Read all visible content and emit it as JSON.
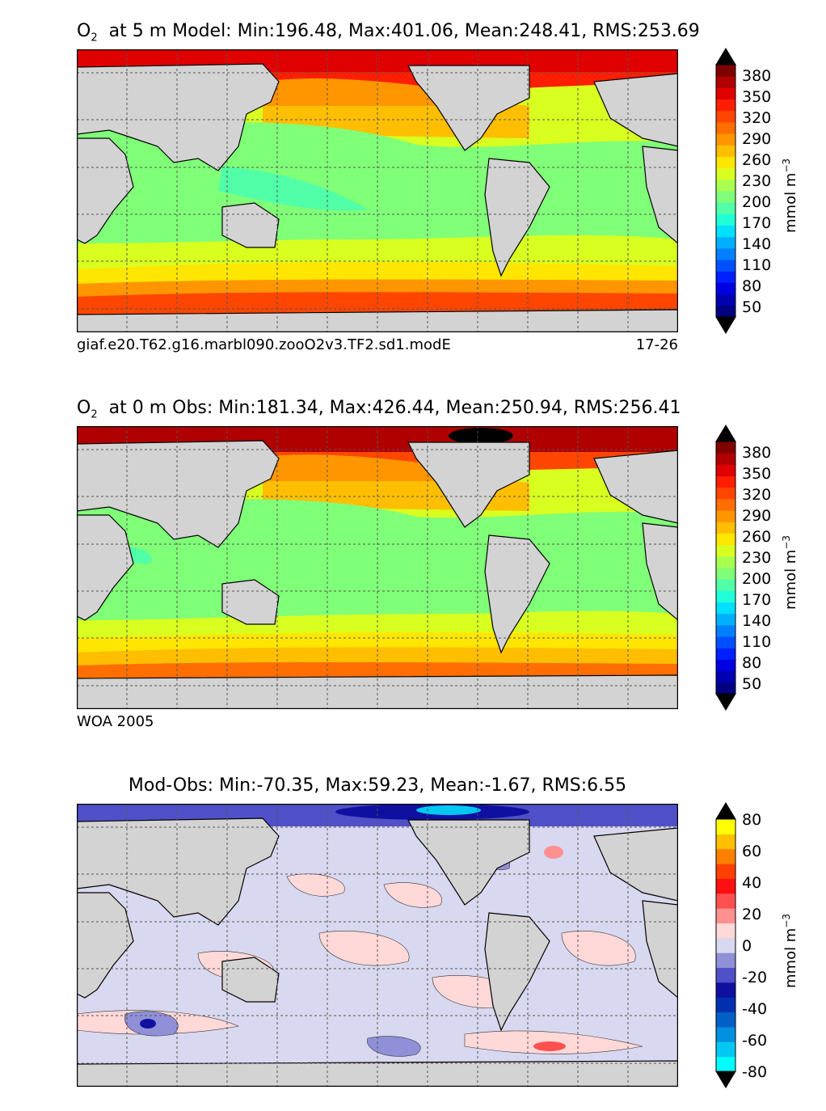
{
  "chart_data": [
    {
      "type": "heatmap",
      "title": "at 5 m Model: Min:196.48, Max:401.06, Mean:248.41, RMS:253.69",
      "variable": "O",
      "variable_sub": "2",
      "footer_left": "giaf.e20.T62.g16.marbl090.zooO2v3.TF2.sd1.modE",
      "footer_right": "17-26",
      "colorbar_label": "mmol m",
      "colorbar_label_sup": "−3",
      "colorbar_ticks": [
        "380",
        "350",
        "320",
        "290",
        "260",
        "230",
        "200",
        "170",
        "140",
        "110",
        "80",
        "50"
      ],
      "levels": [
        35,
        50,
        65,
        80,
        95,
        110,
        125,
        140,
        155,
        170,
        185,
        200,
        215,
        230,
        245,
        260,
        275,
        290,
        305,
        320,
        335,
        350,
        365,
        380,
        395
      ],
      "stats": {
        "min": 196.48,
        "max": 401.06,
        "mean": 248.41,
        "rms": 253.69
      },
      "depth": "5 m",
      "source": "Model"
    },
    {
      "type": "heatmap",
      "title": "at 0 m Obs: Min:181.34, Max:426.44, Mean:250.94, RMS:256.41",
      "variable": "O",
      "variable_sub": "2",
      "footer_left": "WOA 2005",
      "footer_right": "",
      "colorbar_label": "mmol m",
      "colorbar_label_sup": "−3",
      "colorbar_ticks": [
        "380",
        "350",
        "320",
        "290",
        "260",
        "230",
        "200",
        "170",
        "140",
        "110",
        "80",
        "50"
      ],
      "levels": [
        35,
        50,
        65,
        80,
        95,
        110,
        125,
        140,
        155,
        170,
        185,
        200,
        215,
        230,
        245,
        260,
        275,
        290,
        305,
        320,
        335,
        350,
        365,
        380,
        395
      ],
      "stats": {
        "min": 181.34,
        "max": 426.44,
        "mean": 250.94,
        "rms": 256.41
      },
      "depth": "0 m",
      "source": "Obs"
    },
    {
      "type": "heatmap",
      "title": "Mod-Obs: Min:-70.35, Max:59.23, Mean:-1.67, RMS:6.55",
      "variable": "",
      "variable_sub": "",
      "footer_left": "",
      "footer_right": "",
      "colorbar_label": "mmol m",
      "colorbar_label_sup": "−3",
      "colorbar_ticks": [
        "80",
        "60",
        "40",
        "20",
        "0",
        "-20",
        "-40",
        "-60",
        "-80"
      ],
      "levels": [
        -80,
        -70,
        -60,
        -50,
        -40,
        -30,
        -20,
        -10,
        0,
        10,
        20,
        30,
        40,
        50,
        60,
        70,
        80
      ],
      "stats": {
        "min": -70.35,
        "max": 59.23,
        "mean": -1.67,
        "rms": 6.55
      }
    }
  ],
  "colors": {
    "land": "#d3d3d3",
    "coast": "#000000",
    "grid": "#555555",
    "o2_palette": [
      "#000080",
      "#0000b0",
      "#0000e0",
      "#0020ff",
      "#0050ff",
      "#0080ff",
      "#00b0ff",
      "#00e0ff",
      "#20ffd8",
      "#50ffa8",
      "#80ff78",
      "#a8ff50",
      "#d8ff20",
      "#ffe600",
      "#ffbe00",
      "#ff9600",
      "#ff6e00",
      "#ff4600",
      "#ff1e00",
      "#e00000",
      "#b00000",
      "#800000"
    ],
    "diff_palette": [
      "#00ffff",
      "#00c8f0",
      "#0090e0",
      "#0060c8",
      "#0030b0",
      "#1010a0",
      "#5050c8",
      "#9090d8",
      "#d8d8f0",
      "#ffd8d8",
      "#ff9090",
      "#ff5050",
      "#ff1010",
      "#ff4000",
      "#ff8000",
      "#ffc000",
      "#ffff00"
    ]
  }
}
